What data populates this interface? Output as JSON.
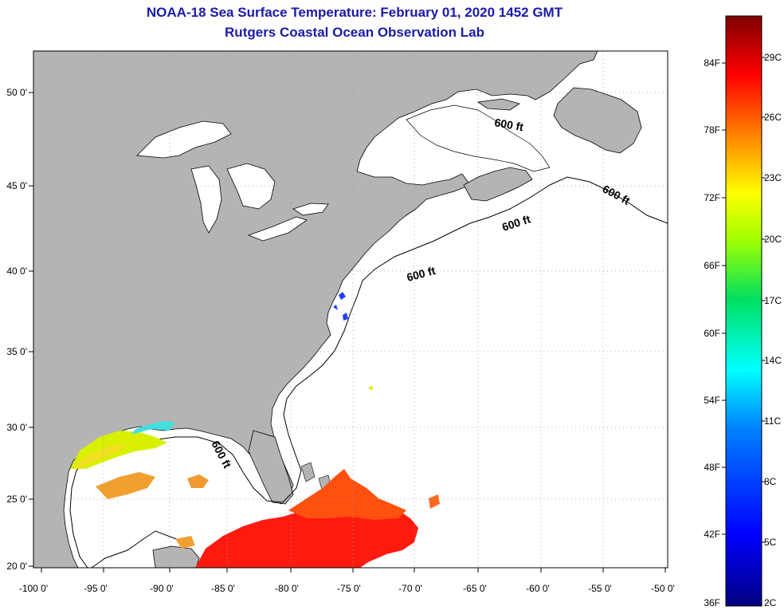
{
  "title": {
    "line1": "NOAA-18 Sea Surface Temperature:  February 01, 2020 1452 GMT",
    "line2": "Rutgers Coastal Ocean Observation Lab"
  },
  "axes": {
    "x_ticks": [
      "-100 0'",
      "-95 0'",
      "-90 0'",
      "-85 0'",
      "-80 0'",
      "-75 0'",
      "-70 0'",
      "-65 0'",
      "-60 0'",
      "-55 0'",
      "-50 0'"
    ],
    "y_ticks": [
      "50 0'",
      "45 0'",
      "40 0'",
      "35 0'",
      "30 0'",
      "25 0'",
      "20 0'"
    ]
  },
  "contours": {
    "label": "600 ft"
  },
  "colorbar": {
    "fahrenheit": [
      "84F",
      "78F",
      "72F",
      "66F",
      "60F",
      "54F",
      "48F",
      "42F",
      "36F"
    ],
    "celsius": [
      "29C",
      "26C",
      "23C",
      "20C",
      "17C",
      "14C",
      "11C",
      "8C",
      "5C",
      "2C"
    ]
  },
  "colors": {
    "land": "#b4b4b4",
    "ocean_nodata": "#ffffff",
    "title": "#1a1aa8",
    "grid": "#9a9a9a"
  }
}
